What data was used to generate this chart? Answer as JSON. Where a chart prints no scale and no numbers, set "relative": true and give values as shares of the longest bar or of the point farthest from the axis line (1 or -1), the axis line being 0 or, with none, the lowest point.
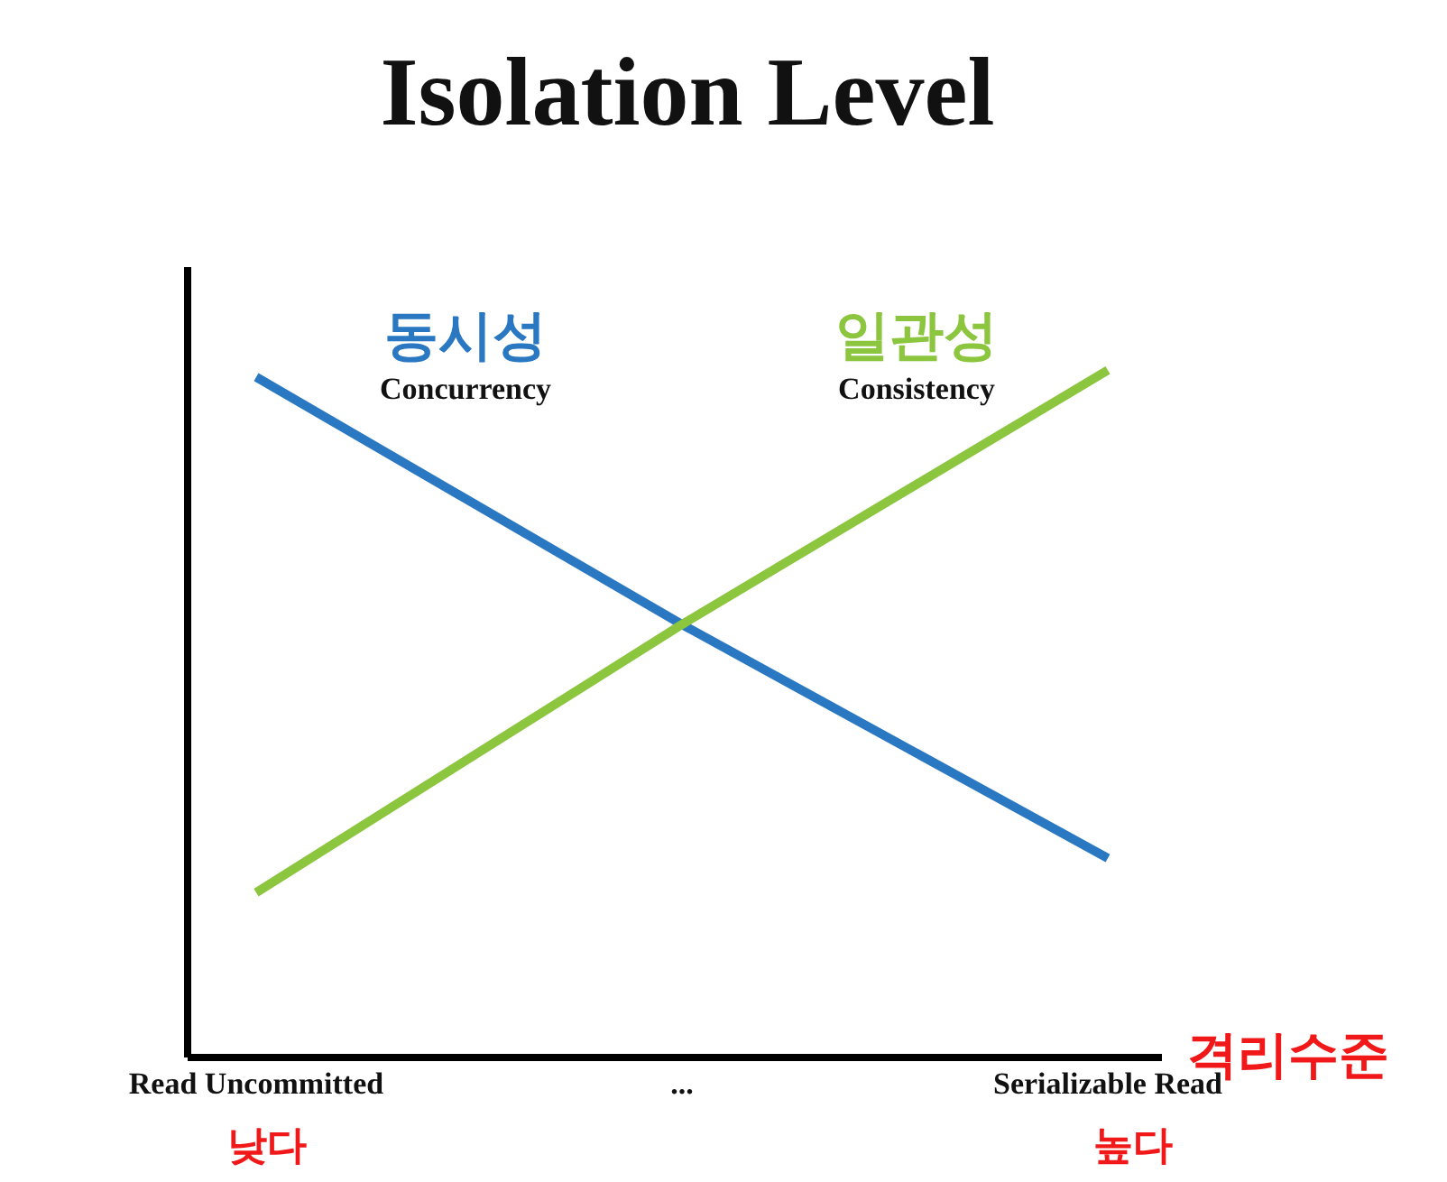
{
  "chart_data": {
    "type": "line",
    "title": "Isolation Level",
    "xlabel": "격리수준",
    "relative": true,
    "categories": [
      "Read Uncommitted",
      "...",
      "Serializable Read"
    ],
    "series": [
      {
        "name": "동시성",
        "color": "#2a78c2",
        "values": [
          0.99,
          0.63,
          0.29
        ]
      },
      {
        "name": "일관성",
        "color": "#8cc63f",
        "values": [
          0.24,
          0.63,
          1
        ]
      }
    ],
    "annotations": [
      "Concurrency",
      "Consistency",
      "낮다",
      "높다"
    ]
  }
}
